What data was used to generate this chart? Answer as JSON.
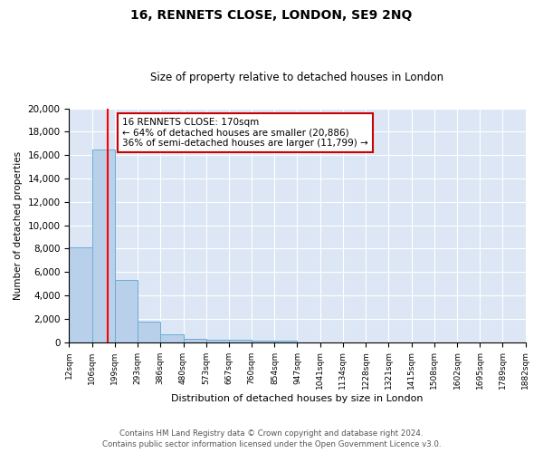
{
  "title": "16, RENNETS CLOSE, LONDON, SE9 2NQ",
  "subtitle": "Size of property relative to detached houses in London",
  "xlabel": "Distribution of detached houses by size in London",
  "ylabel": "Number of detached properties",
  "bin_labels": [
    "12sqm",
    "106sqm",
    "199sqm",
    "293sqm",
    "386sqm",
    "480sqm",
    "573sqm",
    "667sqm",
    "760sqm",
    "854sqm",
    "947sqm",
    "1041sqm",
    "1134sqm",
    "1228sqm",
    "1321sqm",
    "1415sqm",
    "1508sqm",
    "1602sqm",
    "1695sqm",
    "1789sqm",
    "1882sqm"
  ],
  "bar_values": [
    8100,
    16500,
    5300,
    1750,
    700,
    300,
    220,
    190,
    160,
    130,
    0,
    0,
    0,
    0,
    0,
    0,
    0,
    0,
    0,
    0
  ],
  "bar_color": "#b8d0ea",
  "bar_edge_color": "#6aaed6",
  "background_color": "#dce6f5",
  "grid_color": "#ffffff",
  "bin_edges": [
    12,
    106,
    199,
    293,
    386,
    480,
    573,
    667,
    760,
    854,
    947,
    1041,
    1134,
    1228,
    1321,
    1415,
    1508,
    1602,
    1695,
    1789,
    1882
  ],
  "annotation_line1": "16 RENNETS CLOSE: 170sqm",
  "annotation_line2": "← 64% of detached houses are smaller (20,886)",
  "annotation_line3": "36% of semi-detached houses are larger (11,799) →",
  "annotation_box_color": "#ffffff",
  "annotation_box_edge_color": "#cc0000",
  "ylim": [
    0,
    20000
  ],
  "yticks": [
    0,
    2000,
    4000,
    6000,
    8000,
    10000,
    12000,
    14000,
    16000,
    18000,
    20000
  ],
  "footer_line1": "Contains HM Land Registry data © Crown copyright and database right 2024.",
  "footer_line2": "Contains public sector information licensed under the Open Government Licence v3.0."
}
